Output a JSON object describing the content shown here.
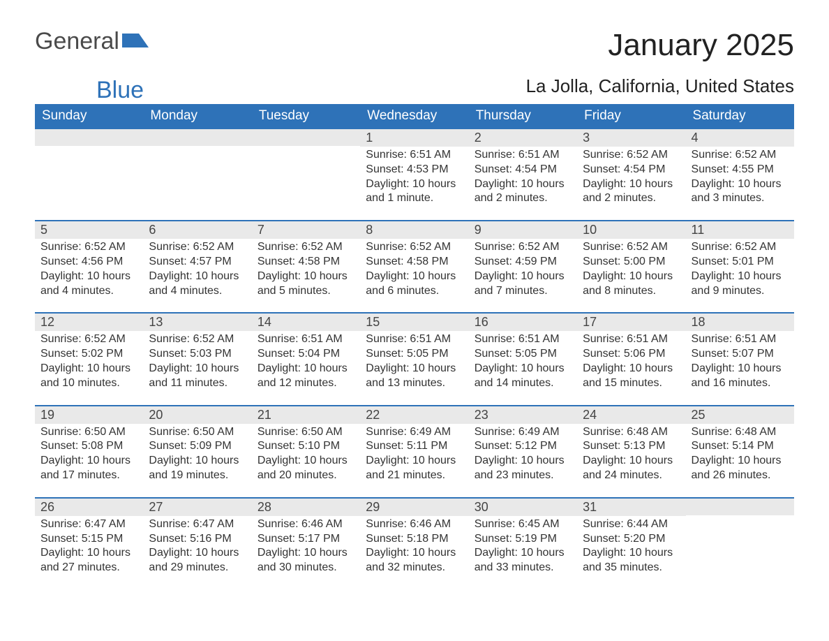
{
  "logo": {
    "text1": "General",
    "text2": "Blue",
    "shape_color": "#2e72b8"
  },
  "title": "January 2025",
  "location": "La Jolla, California, United States",
  "colors": {
    "header_bg": "#2e72b8",
    "header_fg": "#ffffff",
    "daynum_bg": "#e9e9e9",
    "week_border": "#2e72b8",
    "text": "#333333",
    "page_bg": "#ffffff"
  },
  "weekdays": [
    "Sunday",
    "Monday",
    "Tuesday",
    "Wednesday",
    "Thursday",
    "Friday",
    "Saturday"
  ],
  "layout": {
    "columns": 7,
    "rows": 5,
    "first_weekday_index": 3,
    "days_in_month": 31
  },
  "days": [
    {
      "n": 1,
      "sunrise": "6:51 AM",
      "sunset": "4:53 PM",
      "daylight": "10 hours and 1 minute."
    },
    {
      "n": 2,
      "sunrise": "6:51 AM",
      "sunset": "4:54 PM",
      "daylight": "10 hours and 2 minutes."
    },
    {
      "n": 3,
      "sunrise": "6:52 AM",
      "sunset": "4:54 PM",
      "daylight": "10 hours and 2 minutes."
    },
    {
      "n": 4,
      "sunrise": "6:52 AM",
      "sunset": "4:55 PM",
      "daylight": "10 hours and 3 minutes."
    },
    {
      "n": 5,
      "sunrise": "6:52 AM",
      "sunset": "4:56 PM",
      "daylight": "10 hours and 4 minutes."
    },
    {
      "n": 6,
      "sunrise": "6:52 AM",
      "sunset": "4:57 PM",
      "daylight": "10 hours and 4 minutes."
    },
    {
      "n": 7,
      "sunrise": "6:52 AM",
      "sunset": "4:58 PM",
      "daylight": "10 hours and 5 minutes."
    },
    {
      "n": 8,
      "sunrise": "6:52 AM",
      "sunset": "4:58 PM",
      "daylight": "10 hours and 6 minutes."
    },
    {
      "n": 9,
      "sunrise": "6:52 AM",
      "sunset": "4:59 PM",
      "daylight": "10 hours and 7 minutes."
    },
    {
      "n": 10,
      "sunrise": "6:52 AM",
      "sunset": "5:00 PM",
      "daylight": "10 hours and 8 minutes."
    },
    {
      "n": 11,
      "sunrise": "6:52 AM",
      "sunset": "5:01 PM",
      "daylight": "10 hours and 9 minutes."
    },
    {
      "n": 12,
      "sunrise": "6:52 AM",
      "sunset": "5:02 PM",
      "daylight": "10 hours and 10 minutes."
    },
    {
      "n": 13,
      "sunrise": "6:52 AM",
      "sunset": "5:03 PM",
      "daylight": "10 hours and 11 minutes."
    },
    {
      "n": 14,
      "sunrise": "6:51 AM",
      "sunset": "5:04 PM",
      "daylight": "10 hours and 12 minutes."
    },
    {
      "n": 15,
      "sunrise": "6:51 AM",
      "sunset": "5:05 PM",
      "daylight": "10 hours and 13 minutes."
    },
    {
      "n": 16,
      "sunrise": "6:51 AM",
      "sunset": "5:05 PM",
      "daylight": "10 hours and 14 minutes."
    },
    {
      "n": 17,
      "sunrise": "6:51 AM",
      "sunset": "5:06 PM",
      "daylight": "10 hours and 15 minutes."
    },
    {
      "n": 18,
      "sunrise": "6:51 AM",
      "sunset": "5:07 PM",
      "daylight": "10 hours and 16 minutes."
    },
    {
      "n": 19,
      "sunrise": "6:50 AM",
      "sunset": "5:08 PM",
      "daylight": "10 hours and 17 minutes."
    },
    {
      "n": 20,
      "sunrise": "6:50 AM",
      "sunset": "5:09 PM",
      "daylight": "10 hours and 19 minutes."
    },
    {
      "n": 21,
      "sunrise": "6:50 AM",
      "sunset": "5:10 PM",
      "daylight": "10 hours and 20 minutes."
    },
    {
      "n": 22,
      "sunrise": "6:49 AM",
      "sunset": "5:11 PM",
      "daylight": "10 hours and 21 minutes."
    },
    {
      "n": 23,
      "sunrise": "6:49 AM",
      "sunset": "5:12 PM",
      "daylight": "10 hours and 23 minutes."
    },
    {
      "n": 24,
      "sunrise": "6:48 AM",
      "sunset": "5:13 PM",
      "daylight": "10 hours and 24 minutes."
    },
    {
      "n": 25,
      "sunrise": "6:48 AM",
      "sunset": "5:14 PM",
      "daylight": "10 hours and 26 minutes."
    },
    {
      "n": 26,
      "sunrise": "6:47 AM",
      "sunset": "5:15 PM",
      "daylight": "10 hours and 27 minutes."
    },
    {
      "n": 27,
      "sunrise": "6:47 AM",
      "sunset": "5:16 PM",
      "daylight": "10 hours and 29 minutes."
    },
    {
      "n": 28,
      "sunrise": "6:46 AM",
      "sunset": "5:17 PM",
      "daylight": "10 hours and 30 minutes."
    },
    {
      "n": 29,
      "sunrise": "6:46 AM",
      "sunset": "5:18 PM",
      "daylight": "10 hours and 32 minutes."
    },
    {
      "n": 30,
      "sunrise": "6:45 AM",
      "sunset": "5:19 PM",
      "daylight": "10 hours and 33 minutes."
    },
    {
      "n": 31,
      "sunrise": "6:44 AM",
      "sunset": "5:20 PM",
      "daylight": "10 hours and 35 minutes."
    }
  ],
  "labels": {
    "sunrise": "Sunrise:",
    "sunset": "Sunset:",
    "daylight": "Daylight:"
  }
}
